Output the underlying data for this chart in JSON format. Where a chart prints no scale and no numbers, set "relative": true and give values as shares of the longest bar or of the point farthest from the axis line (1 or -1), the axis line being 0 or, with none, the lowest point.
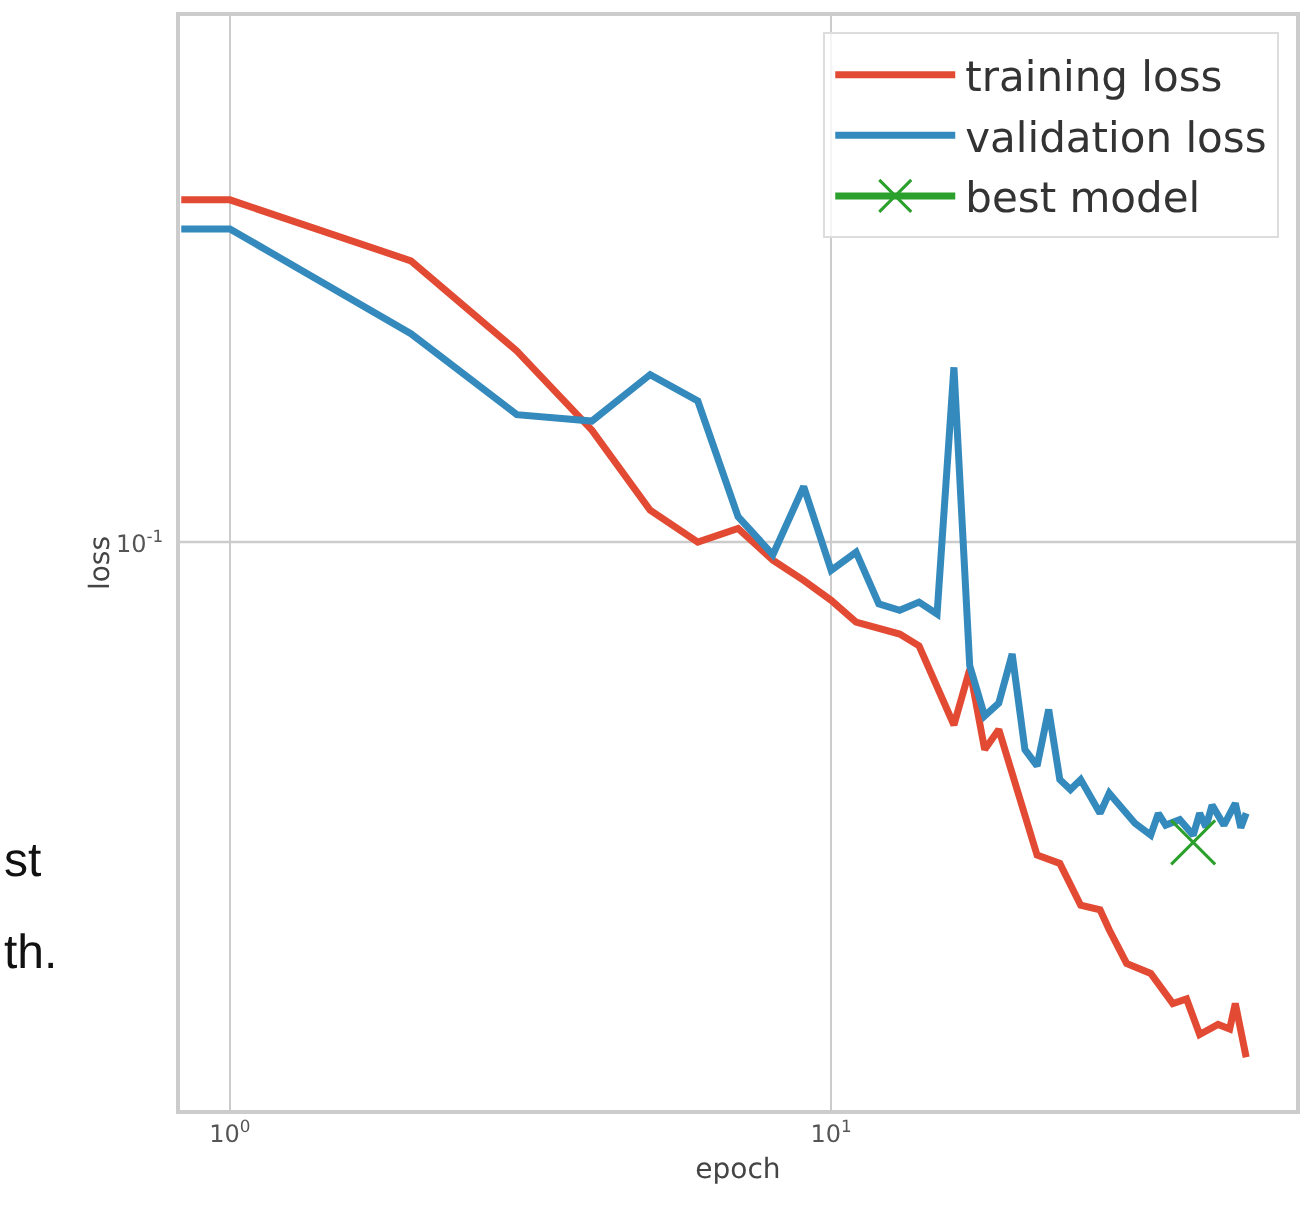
{
  "chart_data": {
    "type": "line",
    "xlabel": "epoch",
    "ylabel": "loss",
    "relative": true,
    "log": "x",
    "grid": "x",
    "legend": "top right",
    "line_style": "solid",
    "xlim": [
      0.826,
      59.3
    ],
    "xticks": [
      {
        "value": 1,
        "label": "10$^{0}$"
      },
      {
        "value": 10,
        "label": "10$^{1}$"
      }
    ],
    "ref_lines": [
      {
        "axis": "y",
        "value": 0.624,
        "color": "#cccccc"
      }
    ],
    "annotations": [
      "10$^{-1}$",
      "st",
      "th."
    ],
    "series": [
      {
        "name": "training loss",
        "color": "#e24a33",
        "marker": "none",
        "x": [
          0.83,
          1,
          2,
          3,
          4,
          5,
          6,
          7,
          8,
          9,
          10,
          11,
          13,
          14,
          16,
          17,
          18,
          19,
          22,
          24,
          26,
          28,
          29,
          31,
          34,
          37,
          39,
          41,
          44,
          46,
          47,
          49
        ],
        "values": [
          1.0,
          1.0,
          0.933,
          0.834,
          0.747,
          0.659,
          0.624,
          0.639,
          0.604,
          0.582,
          0.56,
          0.536,
          0.523,
          0.51,
          0.423,
          0.484,
          0.396,
          0.418,
          0.28,
          0.271,
          0.225,
          0.22,
          0.198,
          0.161,
          0.15,
          0.117,
          0.122,
          0.083,
          0.094,
          0.089,
          0.117,
          0.058
        ]
      },
      {
        "name": "validation loss",
        "color": "#348abd",
        "marker": "none",
        "x": [
          0.83,
          1,
          2,
          3,
          4,
          5,
          6,
          7,
          8,
          9,
          10,
          11,
          12,
          13,
          14,
          15,
          16,
          17,
          18,
          19,
          20,
          21,
          22,
          23,
          24,
          25,
          26,
          28,
          29,
          32,
          34,
          35,
          36,
          38,
          40,
          41,
          42,
          43,
          45,
          47,
          48,
          49
        ],
        "values": [
          0.968,
          0.968,
          0.853,
          0.764,
          0.757,
          0.808,
          0.779,
          0.652,
          0.61,
          0.685,
          0.593,
          0.613,
          0.556,
          0.549,
          0.558,
          0.545,
          0.816,
          0.488,
          0.433,
          0.447,
          0.501,
          0.396,
          0.378,
          0.44,
          0.363,
          0.352,
          0.363,
          0.326,
          0.348,
          0.315,
          0.302,
          0.326,
          0.313,
          0.319,
          0.302,
          0.326,
          0.311,
          0.335,
          0.313,
          0.337,
          0.31,
          0.326
        ]
      },
      {
        "name": "best model",
        "color": "#2ca02c",
        "marker": "cross",
        "x": [
          40
        ],
        "values": [
          0.294
        ]
      }
    ]
  }
}
